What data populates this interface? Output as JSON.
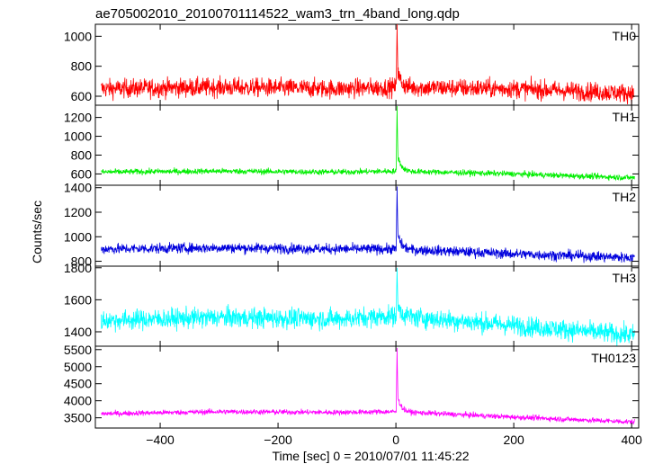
{
  "chart_data": {
    "type": "line",
    "title": "ae705002010_20100701114522_wam3_trn_4band_long.qdp",
    "xlabel": "Time [sec] 0 = 2010/07/01 11:45:22",
    "ylabel": "Counts/sec",
    "xlim": [
      -510,
      412
    ],
    "x_ticks": [
      -400,
      -200,
      0,
      200,
      400
    ],
    "x_tick_labels": [
      "−400",
      "−200",
      "0",
      "200",
      "400"
    ],
    "panels": [
      {
        "name": "TH0",
        "color": "#ff0000",
        "ylim": [
          540,
          1080
        ],
        "yticks": [
          600,
          800,
          1000
        ],
        "baseline": [
          [
            -500,
            650
          ],
          [
            -300,
            660
          ],
          [
            -100,
            650
          ],
          [
            0,
            660
          ],
          [
            200,
            650
          ],
          [
            400,
            620
          ]
        ],
        "noise": 45,
        "peak": {
          "x": 2,
          "y": 1080
        }
      },
      {
        "name": "TH1",
        "color": "#00ee00",
        "ylim": [
          480,
          1330
        ],
        "yticks": [
          600,
          800,
          1000,
          1200
        ],
        "baseline": [
          [
            -500,
            620
          ],
          [
            -300,
            630
          ],
          [
            -100,
            620
          ],
          [
            0,
            630
          ],
          [
            200,
            600
          ],
          [
            400,
            560
          ]
        ],
        "noise": 22,
        "peak": {
          "x": 2,
          "y": 1320
        }
      },
      {
        "name": "TH2",
        "color": "#0000dd",
        "ylim": [
          760,
          1420
        ],
        "yticks": [
          800,
          1000,
          1200,
          1400
        ],
        "baseline": [
          [
            -500,
            900
          ],
          [
            -300,
            910
          ],
          [
            -100,
            900
          ],
          [
            0,
            900
          ],
          [
            200,
            860
          ],
          [
            400,
            830
          ]
        ],
        "noise": 30,
        "peak": {
          "x": 2,
          "y": 1410
        }
      },
      {
        "name": "TH3",
        "color": "#00ffff",
        "ylim": [
          1310,
          1810
        ],
        "yticks": [
          1400,
          1600,
          1800
        ],
        "baseline": [
          [
            -500,
            1470
          ],
          [
            -300,
            1490
          ],
          [
            -100,
            1480
          ],
          [
            0,
            1500
          ],
          [
            200,
            1440
          ],
          [
            400,
            1380
          ]
        ],
        "noise": 45,
        "peak": {
          "x": 2,
          "y": 1800
        }
      },
      {
        "name": "TH0123",
        "color": "#ff00ff",
        "ylim": [
          3200,
          5600
        ],
        "yticks": [
          3500,
          4000,
          4500,
          5000,
          5500
        ],
        "baseline": [
          [
            -500,
            3620
          ],
          [
            -300,
            3680
          ],
          [
            -100,
            3660
          ],
          [
            0,
            3680
          ],
          [
            200,
            3520
          ],
          [
            400,
            3380
          ]
        ],
        "noise": 55,
        "peak": {
          "x": 2,
          "y": 5550
        }
      }
    ]
  }
}
